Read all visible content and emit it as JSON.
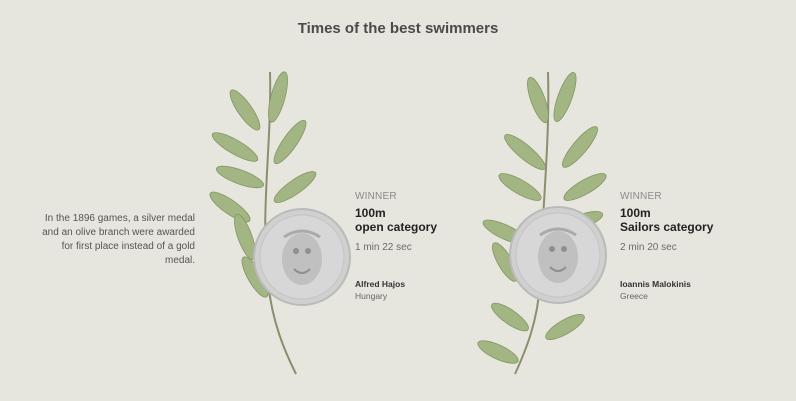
{
  "title": "Times of the best swimmers",
  "side_note": "In the 1896 games, a silver medal and an olive branch were awarded for first place instead of a gold medal.",
  "colors": {
    "background": "#e6e6de",
    "leaf": "#9fb37f",
    "leaf_dark": "#7f9862",
    "stem": "#8b8f6d",
    "medal": "#cfd0cf",
    "medal_edge": "#b9baba"
  },
  "entries": [
    {
      "winner_label": "WINNER",
      "event_line1": "100m",
      "event_line2": "open category",
      "time": "1 min 22 sec",
      "athlete": "Alfred Hajos",
      "country": "Hungary"
    },
    {
      "winner_label": "WINNER",
      "event_line1": "100m",
      "event_line2": "Sailors category",
      "time": "2 min 20 sec",
      "athlete": "Ioannis Malokinis",
      "country": "Greece"
    }
  ]
}
